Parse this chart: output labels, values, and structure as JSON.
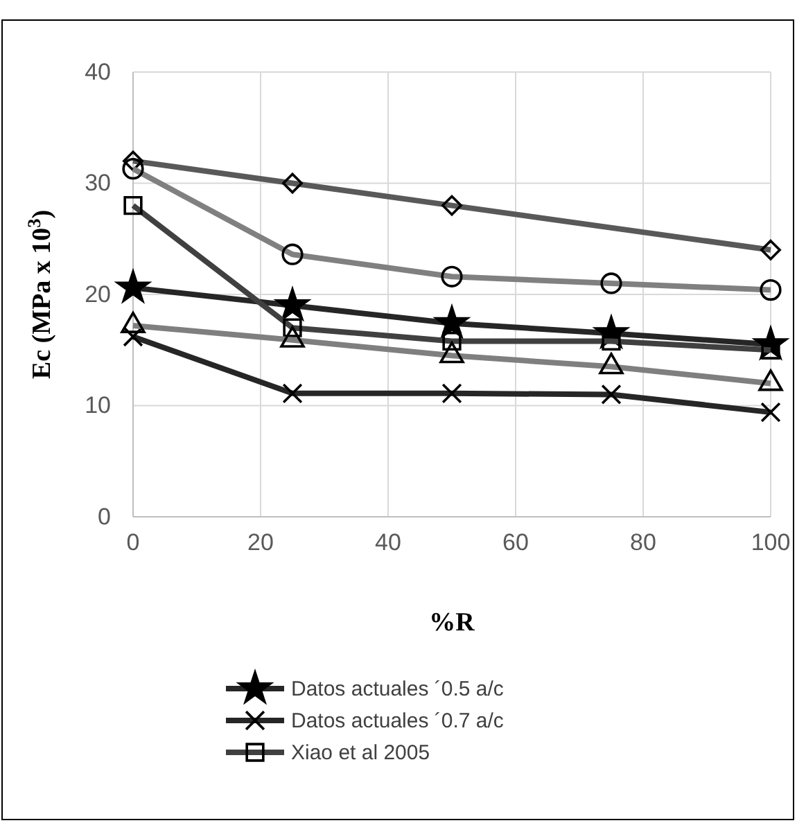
{
  "chart_data": {
    "type": "line",
    "xlabel": "%R",
    "ylabel": "Ec (MPa x 10$^{3}$)",
    "xlim": [
      0,
      100
    ],
    "xticks": [
      0,
      20,
      40,
      60,
      80,
      100
    ],
    "ylim": [
      0,
      40
    ],
    "yticks": [
      0,
      10,
      20,
      30,
      40
    ],
    "grid": true,
    "legend": "bottom",
    "series": [
      {
        "name": "Datos actuales ´0.5 a/c",
        "color": "#262626",
        "marker": "star",
        "x": [
          0,
          25,
          50,
          75,
          100
        ],
        "values": [
          20.6,
          19.0,
          17.4,
          16.5,
          15.5
        ]
      },
      {
        "name": "Datos actuales ´0.7 a/c",
        "color": "#262626",
        "marker": "cross",
        "x": [
          0,
          25,
          50,
          75,
          100
        ],
        "values": [
          16.2,
          11.1,
          11.1,
          11.0,
          9.4
        ]
      },
      {
        "name": "Xiao et al 2005",
        "color": "#404040",
        "marker": "square",
        "x": [
          0,
          25,
          50,
          75,
          100
        ],
        "values": [
          28.0,
          17.0,
          15.8,
          15.8,
          15.0
        ]
      },
      {
        "color": "#595959",
        "marker": "diamond",
        "x": [
          0,
          25,
          50,
          100
        ],
        "values": [
          32.0,
          30.0,
          28.0,
          24.0
        ]
      },
      {
        "color": "#808080",
        "marker": "circle",
        "x": [
          0,
          25,
          50,
          75,
          100
        ],
        "values": [
          31.3,
          23.6,
          21.6,
          21.0,
          20.4
        ]
      },
      {
        "color": "#7f7f7f",
        "marker": "triangle",
        "x": [
          0,
          25,
          50,
          75,
          100
        ],
        "values": [
          17.2,
          15.9,
          14.5,
          13.5,
          12.0
        ]
      }
    ]
  }
}
